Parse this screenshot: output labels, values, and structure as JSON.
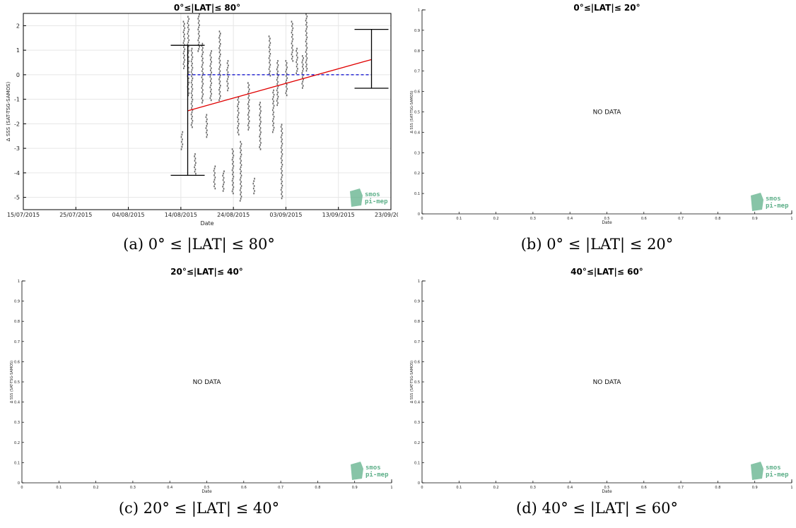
{
  "chart_data": [
    {
      "type": "scatter",
      "title": "0°≤|LAT|≤ 80°",
      "xlabel": "Date",
      "ylabel": "Δ SSS (SAT-TSG-SAMOS)",
      "caption": "(a) 0° ≤ |LAT| ≤ 80°",
      "x_ticks": [
        "15/07/2015",
        "25/07/2015",
        "04/08/2015",
        "14/08/2015",
        "24/08/2015",
        "03/09/2015",
        "13/09/2015",
        "23/09/2015"
      ],
      "y_ticks": [
        "-5",
        "-4",
        "-3",
        "-2",
        "-1",
        "0",
        "1",
        "2"
      ],
      "ylim": [
        -5.5,
        2.5
      ],
      "grid": true,
      "point_clusters": [
        {
          "x_day": 30.1,
          "y_min": -3.0,
          "y_max": -2.3
        },
        {
          "x_day": 30.5,
          "y_min": 0.3,
          "y_max": 2.2
        },
        {
          "x_day": 31.3,
          "y_min": -0.8,
          "y_max": 2.4
        },
        {
          "x_day": 32.0,
          "y_min": -2.1,
          "y_max": 1.1
        },
        {
          "x_day": 32.6,
          "y_min": -4.0,
          "y_max": -3.2
        },
        {
          "x_day": 33.3,
          "y_min": 1.0,
          "y_max": 2.5
        },
        {
          "x_day": 34.0,
          "y_min": -1.1,
          "y_max": 1.3
        },
        {
          "x_day": 34.8,
          "y_min": -2.5,
          "y_max": -1.6
        },
        {
          "x_day": 35.6,
          "y_min": -1.0,
          "y_max": 1.0
        },
        {
          "x_day": 36.3,
          "y_min": -4.6,
          "y_max": -3.7
        },
        {
          "x_day": 37.3,
          "y_min": -1.0,
          "y_max": 1.8
        },
        {
          "x_day": 38.0,
          "y_min": -4.7,
          "y_max": -3.9
        },
        {
          "x_day": 38.8,
          "y_min": -0.6,
          "y_max": 0.6
        },
        {
          "x_day": 39.8,
          "y_min": -4.8,
          "y_max": -3.0
        },
        {
          "x_day": 40.8,
          "y_min": -2.4,
          "y_max": -0.9
        },
        {
          "x_day": 41.3,
          "y_min": -5.1,
          "y_max": -2.7
        },
        {
          "x_day": 42.8,
          "y_min": -2.2,
          "y_max": -0.3
        },
        {
          "x_day": 43.8,
          "y_min": -4.8,
          "y_max": -4.2
        },
        {
          "x_day": 45.0,
          "y_min": -3.0,
          "y_max": -1.1
        },
        {
          "x_day": 46.8,
          "y_min": 0.0,
          "y_max": 1.6
        },
        {
          "x_day": 47.5,
          "y_min": -2.3,
          "y_max": -0.6
        },
        {
          "x_day": 48.3,
          "y_min": -1.2,
          "y_max": 0.6
        },
        {
          "x_day": 49.1,
          "y_min": -5.0,
          "y_max": -2.0
        },
        {
          "x_day": 50.0,
          "y_min": -0.8,
          "y_max": 0.6
        },
        {
          "x_day": 51.1,
          "y_min": 0.6,
          "y_max": 2.2
        },
        {
          "x_day": 52.0,
          "y_min": 0.1,
          "y_max": 1.1
        },
        {
          "x_day": 53.1,
          "y_min": -0.5,
          "y_max": 0.8
        },
        {
          "x_day": 53.8,
          "y_min": 0.2,
          "y_max": 2.5
        }
      ],
      "error_bars": [
        {
          "x_day": 31.3,
          "y_low": -4.1,
          "y_high": 1.2
        },
        {
          "x_day": 66.3,
          "y_low": -0.55,
          "y_high": 1.85
        }
      ],
      "trend_line": {
        "x_day": [
          31.3,
          66.3
        ],
        "y": [
          -1.47,
          0.62
        ],
        "color": "#e00000"
      },
      "zero_line": {
        "x_day": [
          31.3,
          66.3
        ],
        "y": 0,
        "color": "#0000cc"
      },
      "colors": {
        "points": "#666666",
        "error_bar": "#000000"
      }
    },
    {
      "type": "scatter",
      "title": "0°≤|LAT|≤ 20°",
      "xlabel": "Date",
      "ylabel": "Δ SSS (SAT-TSG-SAMOS)",
      "caption": "(b) 0° ≤ |LAT| ≤ 20°",
      "annotation": "NO DATA",
      "x_ticks": [
        "0",
        "0.1",
        "0.2",
        "0.3",
        "0.4",
        "0.5",
        "0.6",
        "0.7",
        "0.8",
        "0.9",
        "1"
      ],
      "y_ticks": [
        "0",
        "0.1",
        "0.2",
        "0.3",
        "0.4",
        "0.5",
        "0.6",
        "0.7",
        "0.8",
        "0.9",
        "1"
      ],
      "xlim": [
        0,
        1
      ],
      "ylim": [
        0,
        1
      ]
    },
    {
      "type": "scatter",
      "title": "20°≤|LAT|≤ 40°",
      "xlabel": "Date",
      "ylabel": "Δ SSS (SAT-TSG-SAMOS)",
      "caption": "(c) 20° ≤ |LAT| ≤ 40°",
      "annotation": "NO DATA",
      "x_ticks": [
        "0",
        "0.1",
        "0.2",
        "0.3",
        "0.4",
        "0.5",
        "0.6",
        "0.7",
        "0.8",
        "0.9",
        "1"
      ],
      "y_ticks": [
        "0",
        "0.1",
        "0.2",
        "0.3",
        "0.4",
        "0.5",
        "0.6",
        "0.7",
        "0.8",
        "0.9",
        "1"
      ],
      "xlim": [
        0,
        1
      ],
      "ylim": [
        0,
        1
      ]
    },
    {
      "type": "scatter",
      "title": "40°≤|LAT|≤ 60°",
      "xlabel": "Date",
      "ylabel": "Δ SSS (SAT-TSG-SAMOS)",
      "caption": "(d) 40° ≤ |LAT| ≤ 60°",
      "annotation": "NO DATA",
      "x_ticks": [
        "0",
        "0.1",
        "0.2",
        "0.3",
        "0.4",
        "0.5",
        "0.6",
        "0.7",
        "0.8",
        "0.9",
        "1"
      ],
      "y_ticks": [
        "0",
        "0.1",
        "0.2",
        "0.3",
        "0.4",
        "0.5",
        "0.6",
        "0.7",
        "0.8",
        "0.9",
        "1"
      ],
      "xlim": [
        0,
        1
      ],
      "ylim": [
        0,
        1
      ]
    }
  ],
  "watermark": {
    "line1": "smos",
    "line2": "pi-mep",
    "color": "#5fb08a"
  }
}
